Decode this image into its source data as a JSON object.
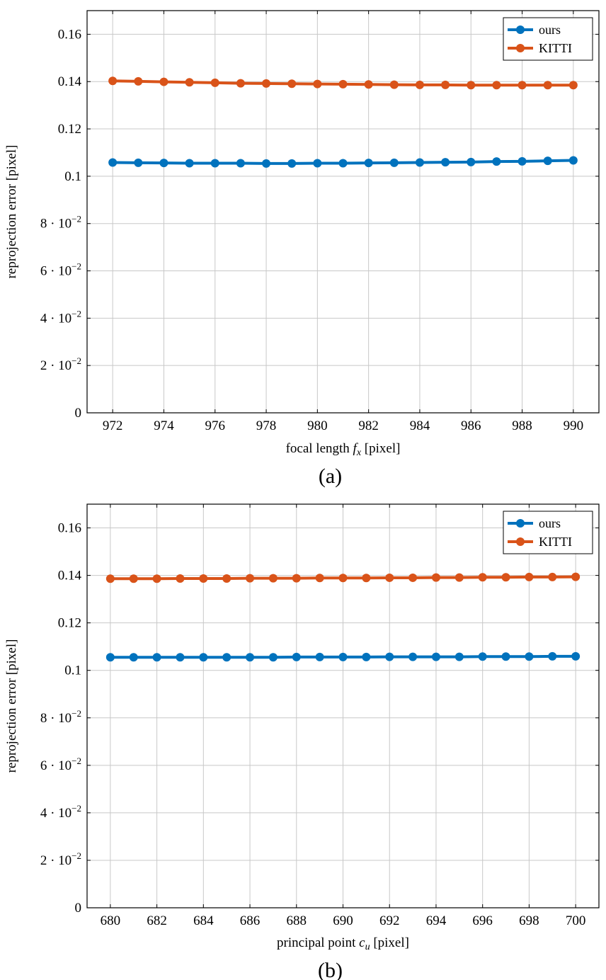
{
  "colors": {
    "ours": "#0072bd",
    "kitti": "#d95319"
  },
  "chart_data": [
    {
      "type": "line",
      "caption": "(a)",
      "xlabel": {
        "pre": "focal length",
        "var": "f",
        "sub": "x",
        "post": "[pixel]"
      },
      "ylabel": "reprojection error [pixel]",
      "xlim": [
        971,
        991
      ],
      "ylim": [
        0,
        0.17
      ],
      "xticks": [
        972,
        974,
        976,
        978,
        980,
        982,
        984,
        986,
        988,
        990
      ],
      "yticks": [
        {
          "value": 0,
          "base": "0",
          "exp": ""
        },
        {
          "value": 0.02,
          "base": "2 · 10",
          "exp": "−2"
        },
        {
          "value": 0.04,
          "base": "4 · 10",
          "exp": "−2"
        },
        {
          "value": 0.06,
          "base": "6 · 10",
          "exp": "−2"
        },
        {
          "value": 0.08,
          "base": "8 · 10",
          "exp": "−2"
        },
        {
          "value": 0.1,
          "base": "0.1",
          "exp": ""
        },
        {
          "value": 0.12,
          "base": "0.12",
          "exp": ""
        },
        {
          "value": 0.14,
          "base": "0.14",
          "exp": ""
        },
        {
          "value": 0.16,
          "base": "0.16",
          "exp": ""
        }
      ],
      "grid": true,
      "legend_position": "top-right",
      "x": [
        972,
        973,
        974,
        975,
        976,
        977,
        978,
        979,
        980,
        981,
        982,
        983,
        984,
        985,
        986,
        987,
        988,
        989,
        990
      ],
      "series": [
        {
          "name": "ours",
          "color_key": "ours",
          "values": [
            0.1058,
            0.1057,
            0.1056,
            0.1055,
            0.1055,
            0.1055,
            0.1054,
            0.1054,
            0.1055,
            0.1055,
            0.1056,
            0.1057,
            0.1058,
            0.1059,
            0.106,
            0.1062,
            0.1063,
            0.1065,
            0.1067
          ]
        },
        {
          "name": "KITTI",
          "color_key": "kitti",
          "values": [
            0.1403,
            0.1401,
            0.1399,
            0.1397,
            0.1395,
            0.1393,
            0.1392,
            0.1391,
            0.139,
            0.1389,
            0.1388,
            0.1387,
            0.1386,
            0.1386,
            0.1385,
            0.1385,
            0.1385,
            0.1385,
            0.1385
          ]
        }
      ]
    },
    {
      "type": "line",
      "caption": "(b)",
      "xlabel": {
        "pre": "principal point",
        "var": "c",
        "sub": "u",
        "post": "[pixel]"
      },
      "ylabel": "reprojection error [pixel]",
      "xlim": [
        679,
        701
      ],
      "ylim": [
        0,
        0.17
      ],
      "xticks": [
        680,
        682,
        684,
        686,
        688,
        690,
        692,
        694,
        696,
        698,
        700
      ],
      "yticks": [
        {
          "value": 0,
          "base": "0",
          "exp": ""
        },
        {
          "value": 0.02,
          "base": "2 · 10",
          "exp": "−2"
        },
        {
          "value": 0.04,
          "base": "4 · 10",
          "exp": "−2"
        },
        {
          "value": 0.06,
          "base": "6 · 10",
          "exp": "−2"
        },
        {
          "value": 0.08,
          "base": "8 · 10",
          "exp": "−2"
        },
        {
          "value": 0.1,
          "base": "0.1",
          "exp": ""
        },
        {
          "value": 0.12,
          "base": "0.12",
          "exp": ""
        },
        {
          "value": 0.14,
          "base": "0.14",
          "exp": ""
        },
        {
          "value": 0.16,
          "base": "0.16",
          "exp": ""
        }
      ],
      "grid": true,
      "legend_position": "top-right",
      "x": [
        680,
        681,
        682,
        683,
        684,
        685,
        686,
        687,
        688,
        689,
        690,
        691,
        692,
        693,
        694,
        695,
        696,
        697,
        698,
        699,
        700
      ],
      "series": [
        {
          "name": "ours",
          "color_key": "ours",
          "values": [
            0.1055,
            0.1055,
            0.1055,
            0.1055,
            0.1055,
            0.1055,
            0.1055,
            0.1055,
            0.1056,
            0.1056,
            0.1056,
            0.1056,
            0.1057,
            0.1057,
            0.1057,
            0.1057,
            0.1058,
            0.1058,
            0.1058,
            0.1059,
            0.1059
          ]
        },
        {
          "name": "KITTI",
          "color_key": "kitti",
          "values": [
            0.1386,
            0.1386,
            0.1386,
            0.1387,
            0.1387,
            0.1387,
            0.1388,
            0.1388,
            0.1388,
            0.1389,
            0.1389,
            0.1389,
            0.139,
            0.139,
            0.1391,
            0.1391,
            0.1392,
            0.1392,
            0.1393,
            0.1393,
            0.1394
          ]
        }
      ]
    }
  ]
}
